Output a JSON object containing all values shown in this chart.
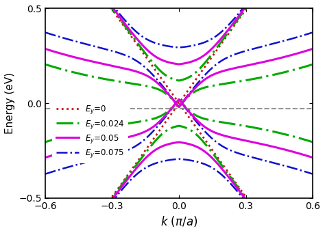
{
  "xlabel": "$k$ $(π/a)$",
  "ylabel": "Energy (eV)",
  "xlim": [
    -0.6,
    0.6
  ],
  "ylim": [
    -0.5,
    0.5
  ],
  "xticks": [
    -0.6,
    -0.3,
    0.0,
    0.3,
    0.6
  ],
  "yticks": [
    -0.5,
    0.0,
    0.5
  ],
  "hline_y": -0.03,
  "hline_color": "#888888",
  "Ey0": {
    "color": "#cc1111",
    "lw": 2.0,
    "label": "$E_y$=0"
  },
  "Ey024": {
    "color": "#00aa00",
    "lw": 2.2,
    "label": "$E_y$=0.024"
  },
  "Ey05": {
    "color": "#dd00dd",
    "lw": 2.2,
    "label": "$E_y$=0.05"
  },
  "Ey075": {
    "color": "#1010cc",
    "lw": 1.8,
    "label": "$E_y$=0.075"
  }
}
